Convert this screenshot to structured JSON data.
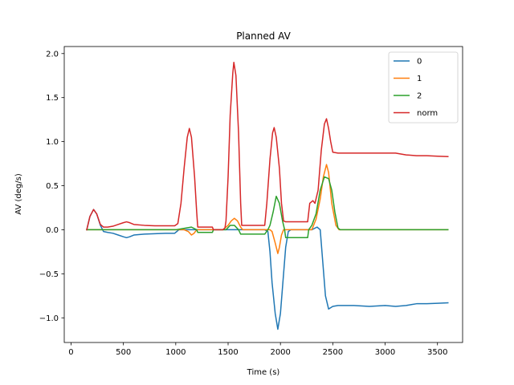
{
  "chart_data": {
    "type": "line",
    "title": "Planned AV",
    "xlabel": "Time (s)",
    "ylabel": "AV (deg/s)",
    "xlim": [
      -65,
      3740
    ],
    "ylim": [
      -1.28,
      2.08
    ],
    "xticks": [
      0,
      500,
      1000,
      1500,
      2000,
      2500,
      3000,
      3500
    ],
    "xtick_labels": [
      "0",
      "500",
      "1000",
      "1500",
      "2000",
      "2500",
      "3000",
      "3500"
    ],
    "yticks": [
      -1.0,
      -0.5,
      0.0,
      0.5,
      1.0,
      1.5,
      2.0
    ],
    "ytick_labels": [
      "−1.0",
      "−0.5",
      "0.0",
      "0.5",
      "1.0",
      "1.5",
      "2.0"
    ],
    "grid": false,
    "legend_position": "top-right",
    "series": [
      {
        "name": "0",
        "color": "#1f77b4",
        "points": [
          [
            150,
            0
          ],
          [
            180,
            0.15
          ],
          [
            215,
            0.23
          ],
          [
            245,
            0.18
          ],
          [
            280,
            0.05
          ],
          [
            310,
            -0.02
          ],
          [
            350,
            -0.03
          ],
          [
            400,
            -0.04
          ],
          [
            450,
            -0.06
          ],
          [
            500,
            -0.08
          ],
          [
            530,
            -0.09
          ],
          [
            560,
            -0.08
          ],
          [
            600,
            -0.06
          ],
          [
            700,
            -0.05
          ],
          [
            800,
            -0.045
          ],
          [
            900,
            -0.04
          ],
          [
            990,
            -0.04
          ],
          [
            1010,
            -0.02
          ],
          [
            1030,
            0
          ],
          [
            1500,
            0
          ],
          [
            1850,
            0
          ],
          [
            1880,
            -0.02
          ],
          [
            1900,
            -0.25
          ],
          [
            1920,
            -0.6
          ],
          [
            1950,
            -0.95
          ],
          [
            1975,
            -1.13
          ],
          [
            2000,
            -0.95
          ],
          [
            2030,
            -0.5
          ],
          [
            2050,
            -0.2
          ],
          [
            2075,
            -0.02
          ],
          [
            2100,
            0
          ],
          [
            2300,
            0
          ],
          [
            2350,
            0.03
          ],
          [
            2380,
            0
          ],
          [
            2400,
            -0.3
          ],
          [
            2430,
            -0.75
          ],
          [
            2460,
            -0.9
          ],
          [
            2500,
            -0.87
          ],
          [
            2550,
            -0.86
          ],
          [
            2700,
            -0.86
          ],
          [
            2850,
            -0.87
          ],
          [
            3000,
            -0.86
          ],
          [
            3100,
            -0.87
          ],
          [
            3200,
            -0.86
          ],
          [
            3250,
            -0.85
          ],
          [
            3300,
            -0.84
          ],
          [
            3400,
            -0.84
          ],
          [
            3500,
            -0.835
          ],
          [
            3600,
            -0.83
          ]
        ]
      },
      {
        "name": "1",
        "color": "#ff7f0e",
        "points": [
          [
            150,
            0
          ],
          [
            500,
            0
          ],
          [
            1000,
            0
          ],
          [
            1080,
            0
          ],
          [
            1120,
            -0.02
          ],
          [
            1150,
            -0.06
          ],
          [
            1175,
            -0.04
          ],
          [
            1200,
            0
          ],
          [
            1450,
            0
          ],
          [
            1500,
            0.05
          ],
          [
            1530,
            0.1
          ],
          [
            1560,
            0.13
          ],
          [
            1590,
            0.1
          ],
          [
            1620,
            0.03
          ],
          [
            1640,
            0
          ],
          [
            1900,
            0
          ],
          [
            1920,
            -0.02
          ],
          [
            1950,
            -0.15
          ],
          [
            1975,
            -0.27
          ],
          [
            1990,
            -0.2
          ],
          [
            2010,
            -0.06
          ],
          [
            2030,
            0
          ],
          [
            2300,
            0
          ],
          [
            2340,
            0.12
          ],
          [
            2380,
            0.35
          ],
          [
            2410,
            0.6
          ],
          [
            2440,
            0.74
          ],
          [
            2460,
            0.65
          ],
          [
            2490,
            0.3
          ],
          [
            2530,
            0.05
          ],
          [
            2560,
            0
          ],
          [
            3600,
            0
          ]
        ]
      },
      {
        "name": "2",
        "color": "#2ca02c",
        "points": [
          [
            150,
            0
          ],
          [
            500,
            0
          ],
          [
            1000,
            0
          ],
          [
            1050,
            0.01
          ],
          [
            1100,
            0.02
          ],
          [
            1150,
            0.03
          ],
          [
            1200,
            0
          ],
          [
            1210,
            -0.03
          ],
          [
            1350,
            -0.03
          ],
          [
            1360,
            0
          ],
          [
            1450,
            0
          ],
          [
            1480,
            0
          ],
          [
            1520,
            0.05
          ],
          [
            1560,
            0.05
          ],
          [
            1600,
            0
          ],
          [
            1620,
            -0.05
          ],
          [
            1850,
            -0.05
          ],
          [
            1880,
            0
          ],
          [
            1900,
            0.05
          ],
          [
            1930,
            0.2
          ],
          [
            1960,
            0.38
          ],
          [
            1990,
            0.3
          ],
          [
            2020,
            0.1
          ],
          [
            2040,
            0
          ],
          [
            2050,
            -0.09
          ],
          [
            2260,
            -0.09
          ],
          [
            2270,
            0
          ],
          [
            2300,
            0.05
          ],
          [
            2340,
            0.18
          ],
          [
            2380,
            0.45
          ],
          [
            2420,
            0.6
          ],
          [
            2460,
            0.58
          ],
          [
            2490,
            0.45
          ],
          [
            2520,
            0.2
          ],
          [
            2550,
            0.02
          ],
          [
            2570,
            0
          ],
          [
            3600,
            0
          ]
        ]
      },
      {
        "name": "norm",
        "color": "#d62728",
        "points": [
          [
            150,
            0
          ],
          [
            180,
            0.15
          ],
          [
            215,
            0.23
          ],
          [
            245,
            0.18
          ],
          [
            280,
            0.06
          ],
          [
            310,
            0.03
          ],
          [
            350,
            0.03
          ],
          [
            400,
            0.04
          ],
          [
            450,
            0.06
          ],
          [
            500,
            0.08
          ],
          [
            530,
            0.09
          ],
          [
            560,
            0.08
          ],
          [
            600,
            0.06
          ],
          [
            700,
            0.05
          ],
          [
            800,
            0.045
          ],
          [
            900,
            0.045
          ],
          [
            990,
            0.045
          ],
          [
            1020,
            0.07
          ],
          [
            1050,
            0.3
          ],
          [
            1080,
            0.7
          ],
          [
            1110,
            1.05
          ],
          [
            1130,
            1.15
          ],
          [
            1150,
            1.05
          ],
          [
            1180,
            0.6
          ],
          [
            1200,
            0.2
          ],
          [
            1210,
            0.03
          ],
          [
            1350,
            0.03
          ],
          [
            1360,
            0.0
          ],
          [
            1450,
            0
          ],
          [
            1470,
            0.02
          ],
          [
            1480,
            0.1
          ],
          [
            1500,
            0.6
          ],
          [
            1520,
            1.3
          ],
          [
            1545,
            1.78
          ],
          [
            1555,
            1.9
          ],
          [
            1575,
            1.75
          ],
          [
            1600,
            1.1
          ],
          [
            1620,
            0.3
          ],
          [
            1630,
            0.05
          ],
          [
            1850,
            0.05
          ],
          [
            1870,
            0.3
          ],
          [
            1900,
            0.8
          ],
          [
            1925,
            1.1
          ],
          [
            1940,
            1.16
          ],
          [
            1960,
            1.05
          ],
          [
            1990,
            0.7
          ],
          [
            2010,
            0.3
          ],
          [
            2030,
            0.1
          ],
          [
            2050,
            0.09
          ],
          [
            2260,
            0.09
          ],
          [
            2280,
            0.3
          ],
          [
            2310,
            0.33
          ],
          [
            2330,
            0.3
          ],
          [
            2360,
            0.45
          ],
          [
            2390,
            0.9
          ],
          [
            2420,
            1.2
          ],
          [
            2440,
            1.26
          ],
          [
            2460,
            1.15
          ],
          [
            2480,
            1.0
          ],
          [
            2500,
            0.88
          ],
          [
            2550,
            0.87
          ],
          [
            2700,
            0.87
          ],
          [
            2850,
            0.87
          ],
          [
            3000,
            0.87
          ],
          [
            3100,
            0.87
          ],
          [
            3150,
            0.86
          ],
          [
            3200,
            0.85
          ],
          [
            3300,
            0.84
          ],
          [
            3400,
            0.84
          ],
          [
            3500,
            0.835
          ],
          [
            3600,
            0.83
          ]
        ]
      }
    ]
  },
  "colors": {
    "axes": "#000000",
    "background": "#ffffff"
  }
}
